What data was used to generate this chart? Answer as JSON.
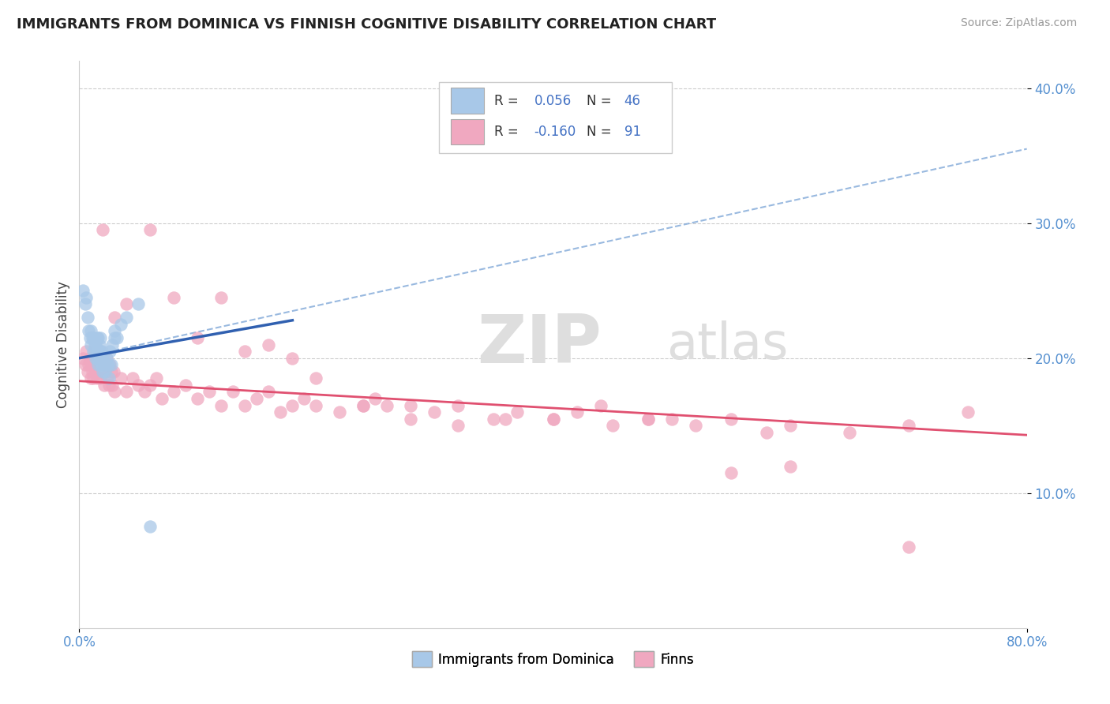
{
  "title": "IMMIGRANTS FROM DOMINICA VS FINNISH COGNITIVE DISABILITY CORRELATION CHART",
  "source_text": "Source: ZipAtlas.com",
  "ylabel": "Cognitive Disability",
  "x_min": 0.0,
  "x_max": 0.8,
  "y_min": 0.0,
  "y_max": 0.42,
  "color_blue": "#a8c8e8",
  "color_pink": "#f0a8c0",
  "line_color_blue": "#3060b0",
  "line_color_pink": "#e05070",
  "dash_line_color": "#80a8d8",
  "tick_color": "#5590d0",
  "grid_color": "#cccccc",
  "blue_x": [
    0.003,
    0.005,
    0.006,
    0.007,
    0.008,
    0.009,
    0.01,
    0.01,
    0.011,
    0.012,
    0.012,
    0.013,
    0.013,
    0.014,
    0.014,
    0.015,
    0.015,
    0.015,
    0.016,
    0.016,
    0.016,
    0.017,
    0.017,
    0.018,
    0.018,
    0.018,
    0.019,
    0.019,
    0.02,
    0.02,
    0.021,
    0.022,
    0.023,
    0.024,
    0.025,
    0.025,
    0.026,
    0.027,
    0.028,
    0.03,
    0.03,
    0.032,
    0.035,
    0.04,
    0.05,
    0.06
  ],
  "blue_y": [
    0.25,
    0.24,
    0.245,
    0.23,
    0.22,
    0.215,
    0.21,
    0.22,
    0.215,
    0.205,
    0.215,
    0.205,
    0.21,
    0.2,
    0.21,
    0.2,
    0.205,
    0.215,
    0.195,
    0.205,
    0.215,
    0.2,
    0.21,
    0.195,
    0.205,
    0.215,
    0.195,
    0.205,
    0.19,
    0.2,
    0.195,
    0.19,
    0.2,
    0.195,
    0.185,
    0.195,
    0.205,
    0.195,
    0.21,
    0.215,
    0.22,
    0.215,
    0.225,
    0.23,
    0.24,
    0.075
  ],
  "pink_x": [
    0.003,
    0.005,
    0.006,
    0.007,
    0.008,
    0.009,
    0.01,
    0.01,
    0.011,
    0.012,
    0.013,
    0.014,
    0.015,
    0.016,
    0.017,
    0.018,
    0.019,
    0.02,
    0.021,
    0.022,
    0.023,
    0.024,
    0.025,
    0.026,
    0.027,
    0.028,
    0.029,
    0.03,
    0.035,
    0.04,
    0.045,
    0.05,
    0.055,
    0.06,
    0.065,
    0.07,
    0.08,
    0.09,
    0.1,
    0.11,
    0.12,
    0.13,
    0.14,
    0.15,
    0.16,
    0.17,
    0.18,
    0.19,
    0.2,
    0.22,
    0.24,
    0.25,
    0.26,
    0.28,
    0.3,
    0.32,
    0.35,
    0.37,
    0.4,
    0.42,
    0.45,
    0.48,
    0.5,
    0.52,
    0.55,
    0.58,
    0.6,
    0.65,
    0.7,
    0.04,
    0.06,
    0.08,
    0.1,
    0.12,
    0.14,
    0.16,
    0.18,
    0.2,
    0.24,
    0.28,
    0.32,
    0.36,
    0.4,
    0.44,
    0.48,
    0.55,
    0.6,
    0.7,
    0.75,
    0.02,
    0.03
  ],
  "pink_y": [
    0.2,
    0.195,
    0.205,
    0.19,
    0.195,
    0.2,
    0.185,
    0.195,
    0.19,
    0.185,
    0.195,
    0.19,
    0.185,
    0.2,
    0.19,
    0.185,
    0.195,
    0.19,
    0.18,
    0.195,
    0.2,
    0.185,
    0.18,
    0.195,
    0.19,
    0.18,
    0.19,
    0.175,
    0.185,
    0.175,
    0.185,
    0.18,
    0.175,
    0.18,
    0.185,
    0.17,
    0.175,
    0.18,
    0.17,
    0.175,
    0.165,
    0.175,
    0.165,
    0.17,
    0.175,
    0.16,
    0.165,
    0.17,
    0.165,
    0.16,
    0.165,
    0.17,
    0.165,
    0.155,
    0.16,
    0.165,
    0.155,
    0.16,
    0.155,
    0.16,
    0.15,
    0.155,
    0.155,
    0.15,
    0.155,
    0.145,
    0.15,
    0.145,
    0.15,
    0.24,
    0.295,
    0.245,
    0.215,
    0.245,
    0.205,
    0.21,
    0.2,
    0.185,
    0.165,
    0.165,
    0.15,
    0.155,
    0.155,
    0.165,
    0.155,
    0.115,
    0.12,
    0.06,
    0.16,
    0.295,
    0.23
  ],
  "blue_line_x0": 0.0,
  "blue_line_x1": 0.18,
  "blue_line_y0": 0.2,
  "blue_line_y1": 0.228,
  "pink_line_x0": 0.0,
  "pink_line_x1": 0.8,
  "pink_line_y0": 0.183,
  "pink_line_y1": 0.143,
  "dash_line_x0": 0.0,
  "dash_line_x1": 0.8,
  "dash_line_y0": 0.2,
  "dash_line_y1": 0.355
}
